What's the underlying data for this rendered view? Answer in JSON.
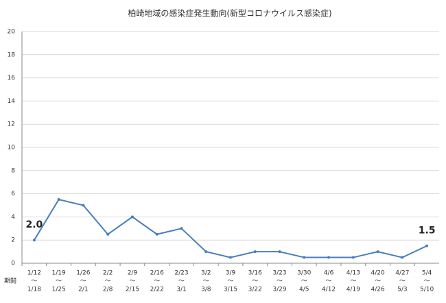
{
  "chart_data": {
    "type": "line",
    "title": "柏崎地域の感染症発生動向(新型コロナウイルス感染症)",
    "x_label": "期間",
    "categories": [
      [
        "1/12",
        "〜",
        "1/18"
      ],
      [
        "1/19",
        "〜",
        "1/25"
      ],
      [
        "1/26",
        "〜",
        "2/1"
      ],
      [
        "2/2",
        "〜",
        "2/8"
      ],
      [
        "2/9",
        "〜",
        "2/15"
      ],
      [
        "2/16",
        "〜",
        "2/22"
      ],
      [
        "2/23",
        "〜",
        "3/1"
      ],
      [
        "3/2",
        "〜",
        "3/8"
      ],
      [
        "3/9",
        "〜",
        "3/15"
      ],
      [
        "3/16",
        "〜",
        "3/22"
      ],
      [
        "3/23",
        "〜",
        "3/29"
      ],
      [
        "3/30",
        "〜",
        "4/5"
      ],
      [
        "4/6",
        "〜",
        "4/12"
      ],
      [
        "4/13",
        "〜",
        "4/19"
      ],
      [
        "4/20",
        "〜",
        "4/26"
      ],
      [
        "4/27",
        "〜",
        "5/3"
      ],
      [
        "5/4",
        "〜",
        "5/10"
      ]
    ],
    "values": [
      2,
      5.5,
      5,
      2.5,
      4,
      2.5,
      3,
      1,
      0.5,
      1,
      1,
      0.5,
      0.5,
      0.5,
      1,
      0.5,
      1.5
    ],
    "value_labels": [
      "2.0",
      null,
      null,
      null,
      null,
      null,
      null,
      null,
      null,
      null,
      null,
      null,
      null,
      null,
      null,
      null,
      "1.5"
    ],
    "color": "#4a7ebb",
    "ylim": [
      0,
      20
    ],
    "yticks": [
      0,
      2,
      4,
      6,
      8,
      10,
      12,
      14,
      16,
      18,
      20
    ],
    "grid": true
  }
}
